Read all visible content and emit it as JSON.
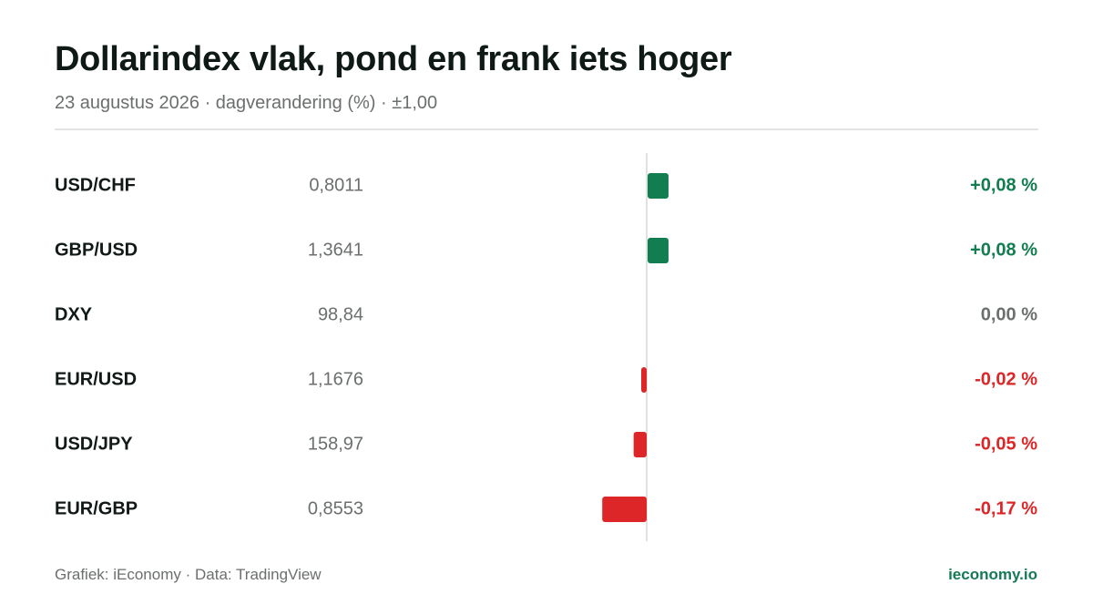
{
  "header": {
    "title": "Dollarindex vlak, pond en frank iets hoger",
    "subtitle": "23 augustus 2026 · dagverandering (%) · ±1,00"
  },
  "footer": {
    "source": "Grafiek: iEconomy · Data: TradingView",
    "brand": "ieconomy.io"
  },
  "colors": {
    "positive": "#137d52",
    "negative": "#dc2628",
    "neutral": "#6b6f6d"
  },
  "chart_data": {
    "type": "bar",
    "orientation": "horizontal",
    "title": "Dollarindex vlak, pond en frank iets hoger",
    "subtitle": "23 augustus 2026 · dagverandering (%) · ±1,00",
    "xlim": [
      -1.0,
      1.0
    ],
    "categories": [
      "USD/CHF",
      "GBP/USD",
      "DXY",
      "EUR/USD",
      "USD/JPY",
      "EUR/GBP"
    ],
    "prices": [
      "0,8011",
      "1,3641",
      "98,84",
      "1,1676",
      "158,97",
      "0,8553"
    ],
    "values": [
      0.08,
      0.08,
      0.0,
      -0.02,
      -0.05,
      -0.17
    ],
    "value_labels": [
      "+0,08 %",
      "+0,08 %",
      "0,00 %",
      "-0,02 %",
      "-0,05 %",
      "-0,17 %"
    ],
    "grid": false,
    "legend": "none"
  }
}
